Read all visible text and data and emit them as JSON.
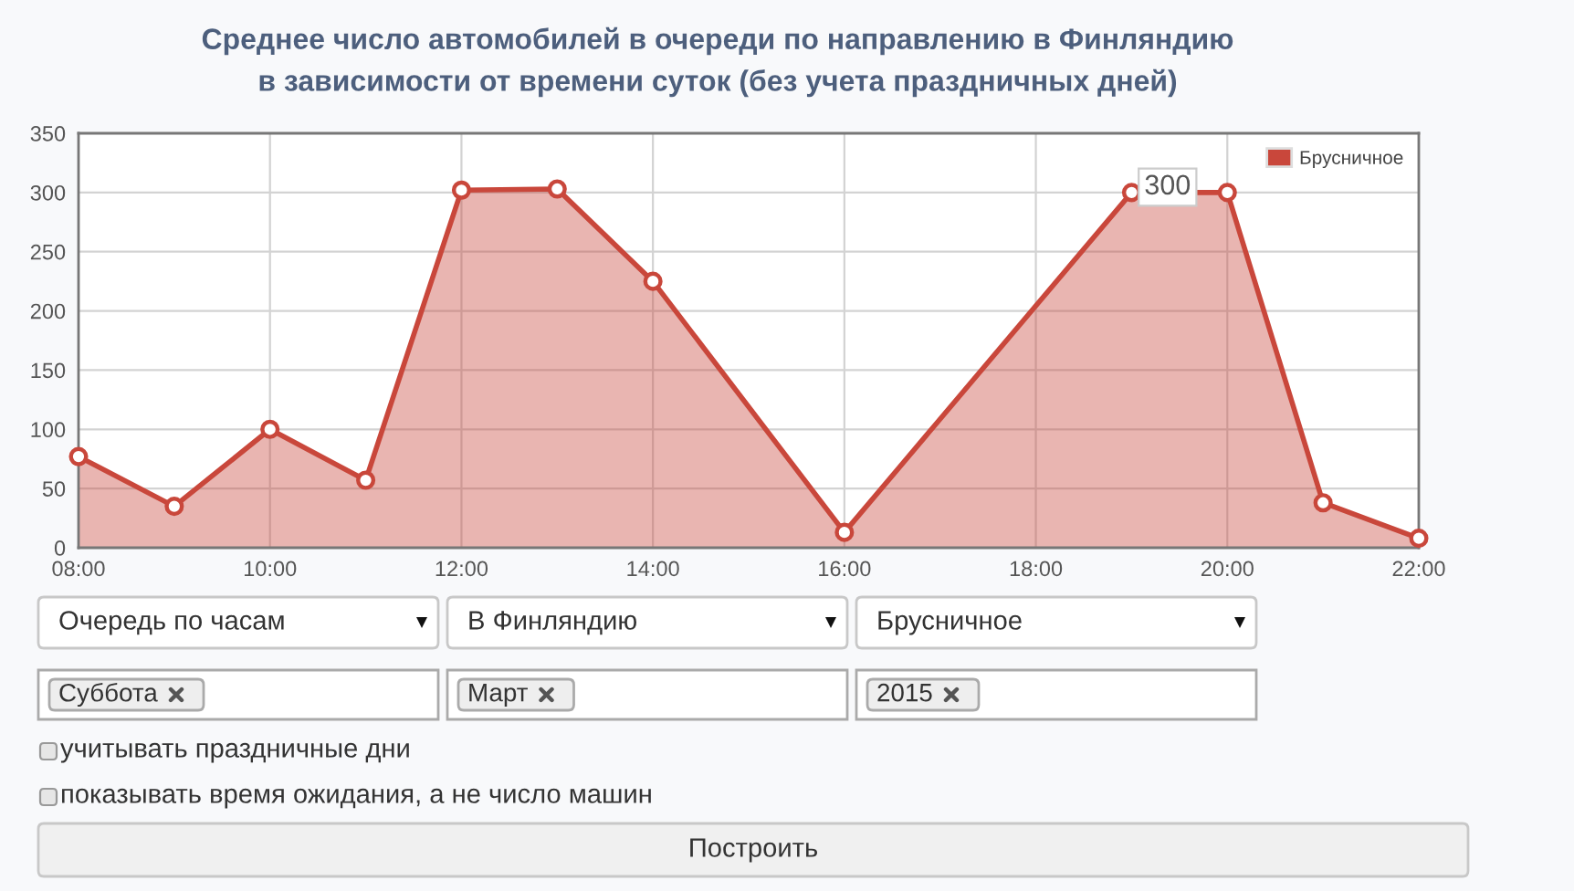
{
  "chart_data": [
    {
      "type": "area",
      "title": "Среднее число автомобилей в очереди по направлению в Финляндию\nв зависимости от времени суток (без учета праздничных дней)",
      "x": [
        8,
        9,
        10,
        11,
        12,
        13,
        14,
        16,
        19,
        20,
        21,
        22
      ],
      "xlim": [
        8,
        22
      ],
      "xticks": [
        {
          "value": 8,
          "label": "08:00"
        },
        {
          "value": 10,
          "label": "10:00"
        },
        {
          "value": 12,
          "label": "12:00"
        },
        {
          "value": 14,
          "label": "14:00"
        },
        {
          "value": 16,
          "label": "16:00"
        },
        {
          "value": 18,
          "label": "18:00"
        },
        {
          "value": 20,
          "label": "20:00"
        },
        {
          "value": 22,
          "label": "22:00"
        }
      ],
      "ylim": [
        0,
        350
      ],
      "yticks": [
        0,
        50,
        100,
        150,
        200,
        250,
        300,
        350
      ],
      "grid": true,
      "legend": "top right",
      "marker": "circle",
      "line_style": "solid",
      "series": [
        {
          "name": "Брусничное",
          "color": "#c9473b",
          "values": [
            77,
            35,
            100,
            57,
            302,
            303,
            225,
            13,
            300,
            300,
            38,
            8
          ],
          "value_labels": [
            null,
            null,
            null,
            null,
            null,
            null,
            null,
            null,
            "300",
            null,
            null,
            null
          ]
        }
      ]
    },
    {
      "type": "other",
      "annotations": [
        "Очередь по часам",
        "В Финляндию",
        "Брусничное",
        "Суббота",
        "Март",
        "2015",
        "учитывать праздничные дни",
        "показывать время ожидания, а не число машин",
        "Построить"
      ]
    }
  ]
}
